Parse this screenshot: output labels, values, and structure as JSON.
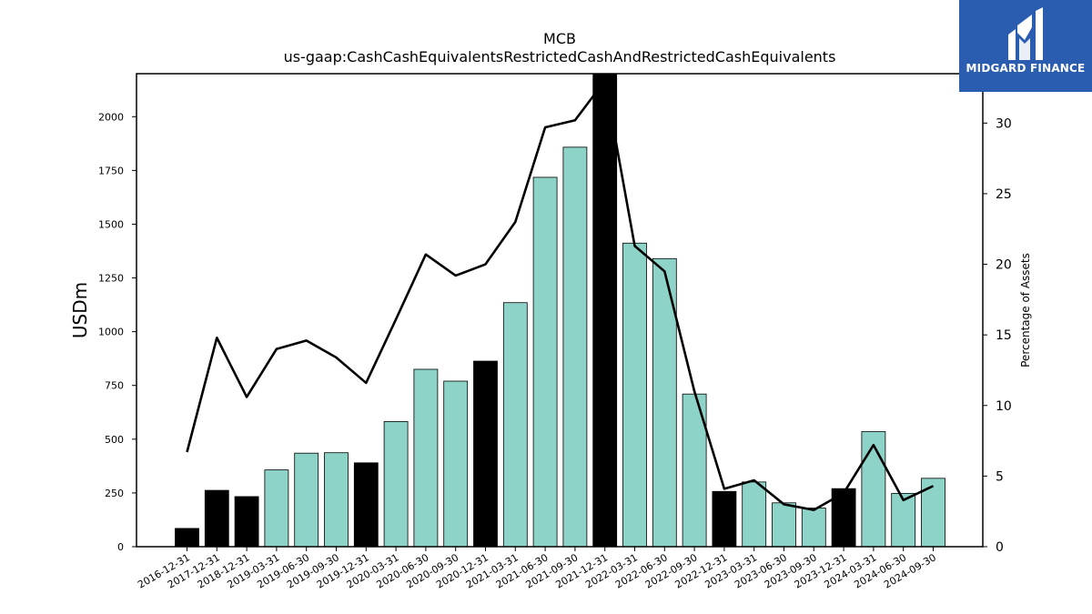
{
  "logo": {
    "text": "MIDGARD FINANCE",
    "bg_color": "#2a5db0"
  },
  "chart_data": {
    "type": "bar",
    "title": "MCB",
    "subtitle": "us-gaap:CashCashEquivalentsRestrictedCashAndRestrictedCashEquivalents",
    "ylabel": "USDm",
    "ylabel_right": "Percentage of Assets",
    "ylim": [
      0,
      2200
    ],
    "ylim_right": [
      0,
      33.5
    ],
    "yticks": [
      0,
      250,
      500,
      750,
      1000,
      1250,
      1500,
      1750,
      2000
    ],
    "yticks_right": [
      0,
      5,
      10,
      15,
      20,
      25,
      30
    ],
    "categories": [
      "2016-12-31",
      "2017-12-31",
      "2018-12-31",
      "2019-03-31",
      "2019-06-30",
      "2019-09-30",
      "2019-12-31",
      "2020-03-31",
      "2020-06-30",
      "2020-09-30",
      "2020-12-31",
      "2021-03-31",
      "2021-06-30",
      "2021-09-30",
      "2021-12-31",
      "2022-03-31",
      "2022-06-30",
      "2022-09-30",
      "2022-12-31",
      "2023-03-31",
      "2023-06-30",
      "2023-09-30",
      "2023-12-31",
      "2024-03-31",
      "2024-06-30",
      "2024-09-30"
    ],
    "values": [
      85,
      262,
      233,
      357,
      435,
      437,
      390,
      582,
      825,
      770,
      863,
      1135,
      1718,
      1858,
      2215,
      1412,
      1340,
      710,
      257,
      301,
      204,
      180,
      270,
      535,
      248,
      318
    ],
    "year_end": [
      true,
      true,
      true,
      false,
      false,
      false,
      true,
      false,
      false,
      false,
      true,
      false,
      false,
      false,
      true,
      false,
      false,
      false,
      true,
      false,
      false,
      false,
      true,
      false,
      false,
      false
    ],
    "pct_assets": [
      6.7,
      14.8,
      10.6,
      14.0,
      14.6,
      13.4,
      11.6,
      16.1,
      20.7,
      19.2,
      20.0,
      23.0,
      29.7,
      30.2,
      33.0,
      21.3,
      19.5,
      11.0,
      4.1,
      4.7,
      3.0,
      2.6,
      3.8,
      7.2,
      3.3,
      4.3
    ],
    "colors": {
      "bar": "#8dd3c7",
      "bar_year_end": "#000000",
      "line": "#000000"
    }
  }
}
